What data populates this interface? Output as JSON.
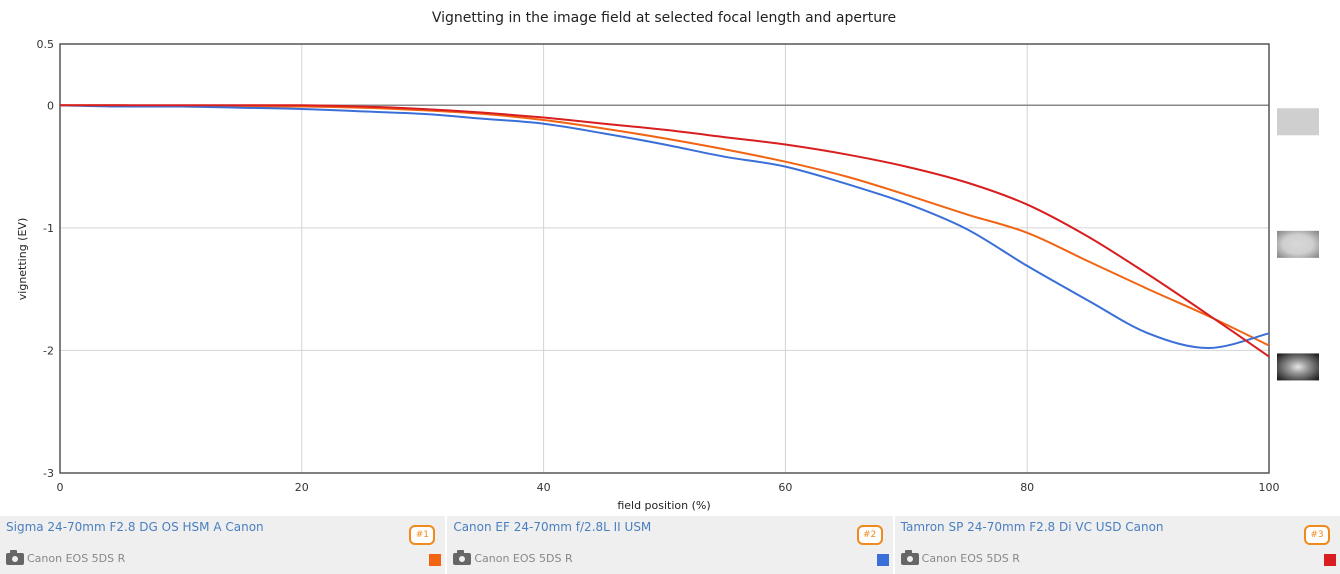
{
  "chart_data": {
    "type": "line",
    "title": "Vignetting in the image field at selected focal length and aperture",
    "xlabel": "field position (%)",
    "ylabel": "vignetting (EV)",
    "xlim": [
      0,
      100
    ],
    "ylim": [
      -3,
      0.5
    ],
    "xticks": [
      0,
      20,
      40,
      60,
      80,
      100
    ],
    "xtick_labels": [
      "0",
      "20",
      "40",
      "60",
      "80",
      "100"
    ],
    "yticks": [
      0.5,
      0,
      -1,
      -2,
      -3
    ],
    "ytick_labels": [
      "0.5",
      "0",
      "-1",
      "-2",
      "-3"
    ],
    "grid": true,
    "x": [
      0,
      5,
      10,
      15,
      20,
      25,
      30,
      35,
      40,
      45,
      50,
      55,
      60,
      65,
      70,
      75,
      80,
      85,
      90,
      95,
      100
    ],
    "series": [
      {
        "name": "Sigma 24-70mm F2.8 DG OS HSM A Canon",
        "color": "#f06414",
        "values": [
          0,
          0,
          -0.01,
          -0.01,
          -0.01,
          -0.02,
          -0.04,
          -0.07,
          -0.12,
          -0.19,
          -0.27,
          -0.36,
          -0.46,
          -0.58,
          -0.73,
          -0.89,
          -1.04,
          -1.27,
          -1.5,
          -1.72,
          -1.96
        ]
      },
      {
        "name": "Canon EF 24-70mm f/2.8L II USM",
        "color": "#3a6fd8",
        "values": [
          0,
          -0.01,
          -0.01,
          -0.02,
          -0.03,
          -0.05,
          -0.07,
          -0.11,
          -0.15,
          -0.23,
          -0.32,
          -0.42,
          -0.5,
          -0.64,
          -0.8,
          -1.01,
          -1.31,
          -1.59,
          -1.86,
          -1.98,
          -1.86
        ]
      },
      {
        "name": "Tamron SP 24-70mm F2.8 Di VC USD Canon",
        "color": "#d81e1e",
        "values": [
          0,
          0,
          0,
          0,
          0,
          -0.01,
          -0.03,
          -0.06,
          -0.1,
          -0.15,
          -0.2,
          -0.26,
          -0.32,
          -0.4,
          -0.5,
          -0.63,
          -0.81,
          -1.07,
          -1.38,
          -1.71,
          -2.05
        ]
      }
    ],
    "legend": [
      {
        "lens": "Sigma 24-70mm F2.8 DG OS HSM A Canon",
        "camera": "Canon EOS 5DS R",
        "badge": "#1",
        "color": "#f06414"
      },
      {
        "lens": "Canon EF 24-70mm f/2.8L II USM",
        "camera": "Canon EOS 5DS R",
        "badge": "#2",
        "color": "#3a6fd8"
      },
      {
        "lens": "Tamron SP 24-70mm F2.8 Di VC USD Canon",
        "camera": "Canon EOS 5DS R",
        "badge": "#3",
        "color": "#d81e1e"
      }
    ],
    "legend_placement": "bottom",
    "zero_line": 0,
    "side_thumbnails": [
      {
        "name": "vignette-preview-0",
        "level": 0
      },
      {
        "name": "vignette-preview-1",
        "level": -1
      },
      {
        "name": "vignette-preview-2",
        "level": -2
      }
    ]
  }
}
